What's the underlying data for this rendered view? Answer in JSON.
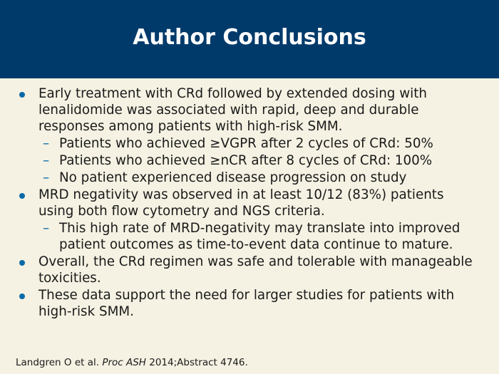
{
  "slide": {
    "title": "Author Conclusions",
    "bullets": [
      {
        "text": "Early treatment with CRd followed by extended dosing with lenalidomide was associated with rapid, deep and durable responses among patients with high-risk SMM.",
        "subs": [
          "Patients who achieved ≥VGPR after 2 cycles of CRd: 50%",
          "Patients who achieved ≥nCR after 8 cycles of CRd: 100%",
          "No patient experienced disease progression on study"
        ]
      },
      {
        "text": "MRD negativity was observed in at least 10/12 (83%) patients using both flow cytometry and NGS criteria.",
        "subs": [
          "This high rate of MRD-negativity may translate into improved patient outcomes as time-to-event data continue to mature."
        ]
      },
      {
        "text": "Overall, the CRd regimen was safe and tolerable with manageable toxicities.",
        "subs": []
      },
      {
        "text": "These data support the need for larger studies for patients with high-risk SMM.",
        "subs": []
      }
    ],
    "sub_marker": "–",
    "citation": {
      "authors": "Landgren O et al.",
      "journal": "Proc ASH",
      "details": "2014;Abstract 4746."
    }
  },
  "colors": {
    "header": "#003a6b",
    "background": "#f5f2e3",
    "bullet": "#0a6aa8"
  }
}
